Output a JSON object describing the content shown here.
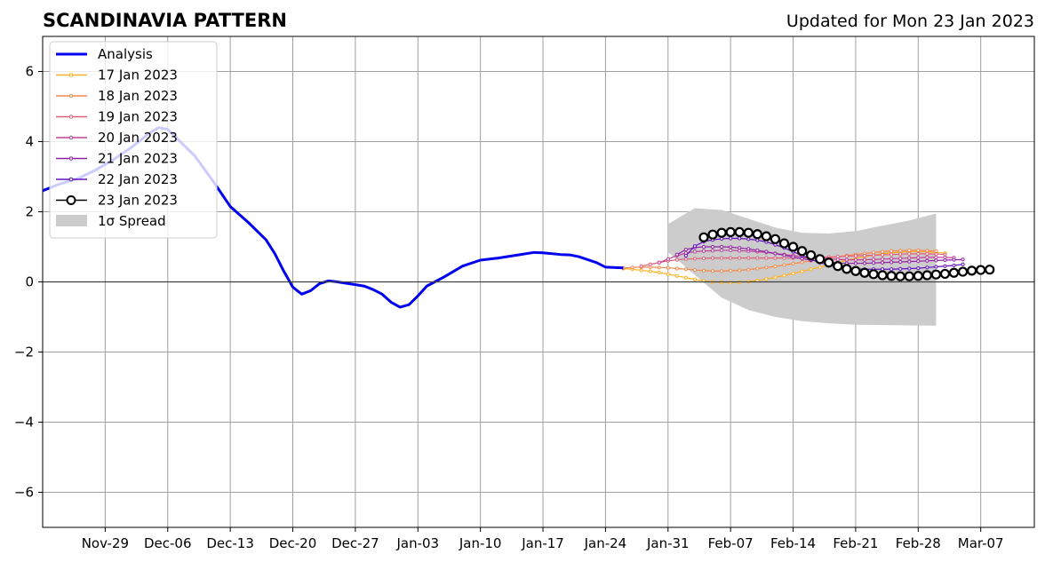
{
  "title": "SCANDINAVIA PATTERN",
  "subtitle": "Updated for Mon 23 Jan 2023",
  "chart_data": {
    "type": "line",
    "title": "SCANDINAVIA PATTERN",
    "subtitle": "Updated for Mon 23 Jan 2023",
    "xlabel": "",
    "ylabel": "",
    "xlim": [
      "2022-11-22",
      "2023-03-13"
    ],
    "ylim": [
      -7,
      7
    ],
    "grid": true,
    "legend_position": "top-left",
    "x_ticks": [
      "Nov-29",
      "Dec-06",
      "Dec-13",
      "Dec-20",
      "Dec-27",
      "Jan-03",
      "Jan-10",
      "Jan-17",
      "Jan-24",
      "Jan-31",
      "Feb-07",
      "Feb-14",
      "Feb-21",
      "Feb-28",
      "Mar-07"
    ],
    "x_tick_dates": [
      "2022-11-29",
      "2022-12-06",
      "2022-12-13",
      "2022-12-20",
      "2022-12-27",
      "2023-01-03",
      "2023-01-10",
      "2023-01-17",
      "2023-01-24",
      "2023-01-31",
      "2023-02-07",
      "2023-02-14",
      "2023-02-21",
      "2023-02-28",
      "2023-03-07"
    ],
    "y_ticks": [
      -6,
      -4,
      -2,
      0,
      2,
      4,
      6
    ],
    "y_tick_labels": [
      "−6",
      "−4",
      "−2",
      "0",
      "2",
      "4",
      "6"
    ],
    "analysis": {
      "name": "Analysis",
      "color": "#0000ee",
      "points": [
        [
          "2022-11-22",
          2.6
        ],
        [
          "2022-11-24",
          2.8
        ],
        [
          "2022-11-26",
          2.95
        ],
        [
          "2022-11-28",
          3.2
        ],
        [
          "2022-11-30",
          3.5
        ],
        [
          "2022-12-02",
          3.85
        ],
        [
          "2022-12-04",
          4.25
        ],
        [
          "2022-12-05",
          4.4
        ],
        [
          "2022-12-06",
          4.35
        ],
        [
          "2022-12-07",
          4.1
        ],
        [
          "2022-12-09",
          3.6
        ],
        [
          "2022-12-11",
          2.9
        ],
        [
          "2022-12-13",
          2.15
        ],
        [
          "2022-12-15",
          1.7
        ],
        [
          "2022-12-17",
          1.2
        ],
        [
          "2022-12-18",
          0.8
        ],
        [
          "2022-12-19",
          0.3
        ],
        [
          "2022-12-20",
          -0.15
        ],
        [
          "2022-12-21",
          -0.35
        ],
        [
          "2022-12-22",
          -0.25
        ],
        [
          "2022-12-23",
          -0.05
        ],
        [
          "2022-12-24",
          0.03
        ],
        [
          "2022-12-25",
          0.0
        ],
        [
          "2022-12-27",
          -0.08
        ],
        [
          "2022-12-28",
          -0.12
        ],
        [
          "2022-12-29",
          -0.22
        ],
        [
          "2022-12-30",
          -0.35
        ],
        [
          "2022-12-31",
          -0.58
        ],
        [
          "2023-01-01",
          -0.72
        ],
        [
          "2023-01-02",
          -0.65
        ],
        [
          "2023-01-03",
          -0.4
        ],
        [
          "2023-01-04",
          -0.12
        ],
        [
          "2023-01-06",
          0.15
        ],
        [
          "2023-01-08",
          0.45
        ],
        [
          "2023-01-10",
          0.62
        ],
        [
          "2023-01-12",
          0.68
        ],
        [
          "2023-01-14",
          0.76
        ],
        [
          "2023-01-16",
          0.84
        ],
        [
          "2023-01-17",
          0.83
        ],
        [
          "2023-01-19",
          0.78
        ],
        [
          "2023-01-20",
          0.77
        ],
        [
          "2023-01-21",
          0.72
        ],
        [
          "2023-01-23",
          0.55
        ],
        [
          "2023-01-24",
          0.42
        ],
        [
          "2023-01-26",
          0.4
        ]
      ]
    },
    "spread": {
      "name": "1σ Spread",
      "color": "#cccccc",
      "x": [
        "2023-01-31",
        "2023-02-03",
        "2023-02-06",
        "2023-02-09",
        "2023-02-12",
        "2023-02-15",
        "2023-02-18",
        "2023-02-21",
        "2023-02-24",
        "2023-02-27",
        "2023-03-02"
      ],
      "upper": [
        1.65,
        2.1,
        2.05,
        1.8,
        1.55,
        1.4,
        1.38,
        1.45,
        1.6,
        1.75,
        1.95
      ],
      "lower": [
        0.85,
        0.2,
        -0.45,
        -0.8,
        -1.0,
        -1.12,
        -1.18,
        -1.22,
        -1.23,
        -1.24,
        -1.25
      ]
    },
    "series": [
      {
        "name": "17 Jan 2023",
        "color": "#ffb020",
        "start": "2023-01-26",
        "step": 1,
        "values": [
          0.38,
          0.36,
          0.33,
          0.3,
          0.27,
          0.22,
          0.17,
          0.12,
          0.07,
          0.03,
          0.0,
          -0.01,
          -0.02,
          -0.01,
          0.01,
          0.04,
          0.08,
          0.13,
          0.18,
          0.24,
          0.3,
          0.36,
          0.42,
          0.48,
          0.55,
          0.62,
          0.67,
          0.72,
          0.76,
          0.8,
          0.83,
          0.85,
          0.86,
          0.87,
          0.86,
          0.84,
          0.82
        ]
      },
      {
        "name": "18 Jan 2023",
        "color": "#f4884a",
        "start": "2023-01-26",
        "step": 1,
        "values": [
          0.4,
          0.41,
          0.42,
          0.42,
          0.41,
          0.4,
          0.38,
          0.36,
          0.34,
          0.32,
          0.31,
          0.31,
          0.32,
          0.33,
          0.35,
          0.38,
          0.41,
          0.44,
          0.48,
          0.52,
          0.56,
          0.6,
          0.64,
          0.68,
          0.72,
          0.75,
          0.78,
          0.81,
          0.84,
          0.86,
          0.88,
          0.89,
          0.9,
          0.9,
          0.89,
          0.88
        ]
      },
      {
        "name": "19 Jan 2023",
        "color": "#e0607a",
        "start": "2023-01-28",
        "step": 1,
        "values": [
          0.45,
          0.5,
          0.55,
          0.6,
          0.63,
          0.65,
          0.66,
          0.67,
          0.68,
          0.68,
          0.68,
          0.68,
          0.68,
          0.68,
          0.68,
          0.68,
          0.68,
          0.68,
          0.68,
          0.69,
          0.7,
          0.71,
          0.72,
          0.73,
          0.74,
          0.75,
          0.76,
          0.77,
          0.78,
          0.79,
          0.8,
          0.8,
          0.8,
          0.79,
          0.78
        ]
      },
      {
        "name": "20 Jan 2023",
        "color": "#c04098",
        "start": "2023-01-30",
        "step": 1,
        "values": [
          0.55,
          0.65,
          0.75,
          0.82,
          0.86,
          0.88,
          0.89,
          0.9,
          0.9,
          0.89,
          0.88,
          0.86,
          0.84,
          0.81,
          0.78,
          0.75,
          0.72,
          0.7,
          0.68,
          0.66,
          0.64,
          0.63,
          0.63,
          0.63,
          0.64,
          0.65,
          0.66,
          0.67,
          0.68,
          0.69,
          0.7,
          0.7,
          0.7,
          0.69
        ]
      },
      {
        "name": "21 Jan 2023",
        "color": "#9020a8",
        "start": "2023-02-01",
        "step": 1,
        "values": [
          0.78,
          0.92,
          0.98,
          1.0,
          1.0,
          1.0,
          0.99,
          0.97,
          0.94,
          0.9,
          0.86,
          0.81,
          0.76,
          0.71,
          0.66,
          0.62,
          0.58,
          0.56,
          0.54,
          0.53,
          0.53,
          0.53,
          0.54,
          0.55,
          0.56,
          0.57,
          0.58,
          0.59,
          0.6,
          0.61,
          0.62,
          0.63,
          0.64
        ]
      },
      {
        "name": "22 Jan 2023",
        "color": "#6010c0",
        "start": "2023-02-02",
        "step": 1,
        "values": [
          0.75,
          1.02,
          1.15,
          1.2,
          1.23,
          1.24,
          1.24,
          1.22,
          1.19,
          1.14,
          1.06,
          0.97,
          0.86,
          0.75,
          0.64,
          0.55,
          0.48,
          0.42,
          0.39,
          0.37,
          0.36,
          0.36,
          0.36,
          0.36,
          0.37,
          0.38,
          0.39,
          0.41,
          0.43,
          0.45,
          0.47,
          0.5
        ]
      },
      {
        "name": "23 Jan 2023",
        "color": "#000000",
        "start": "2023-02-04",
        "step": 1,
        "values": [
          1.27,
          1.35,
          1.4,
          1.42,
          1.42,
          1.4,
          1.36,
          1.3,
          1.22,
          1.1,
          1.0,
          0.88,
          0.76,
          0.65,
          0.55,
          0.45,
          0.37,
          0.31,
          0.26,
          0.22,
          0.19,
          0.17,
          0.16,
          0.16,
          0.17,
          0.19,
          0.21,
          0.23,
          0.26,
          0.29,
          0.32,
          0.34,
          0.35
        ]
      }
    ],
    "legend": [
      "Analysis",
      "17 Jan 2023",
      "18 Jan 2023",
      "19 Jan 2023",
      "20 Jan 2023",
      "21 Jan 2023",
      "22 Jan 2023",
      "23 Jan 2023",
      "1σ Spread"
    ]
  }
}
